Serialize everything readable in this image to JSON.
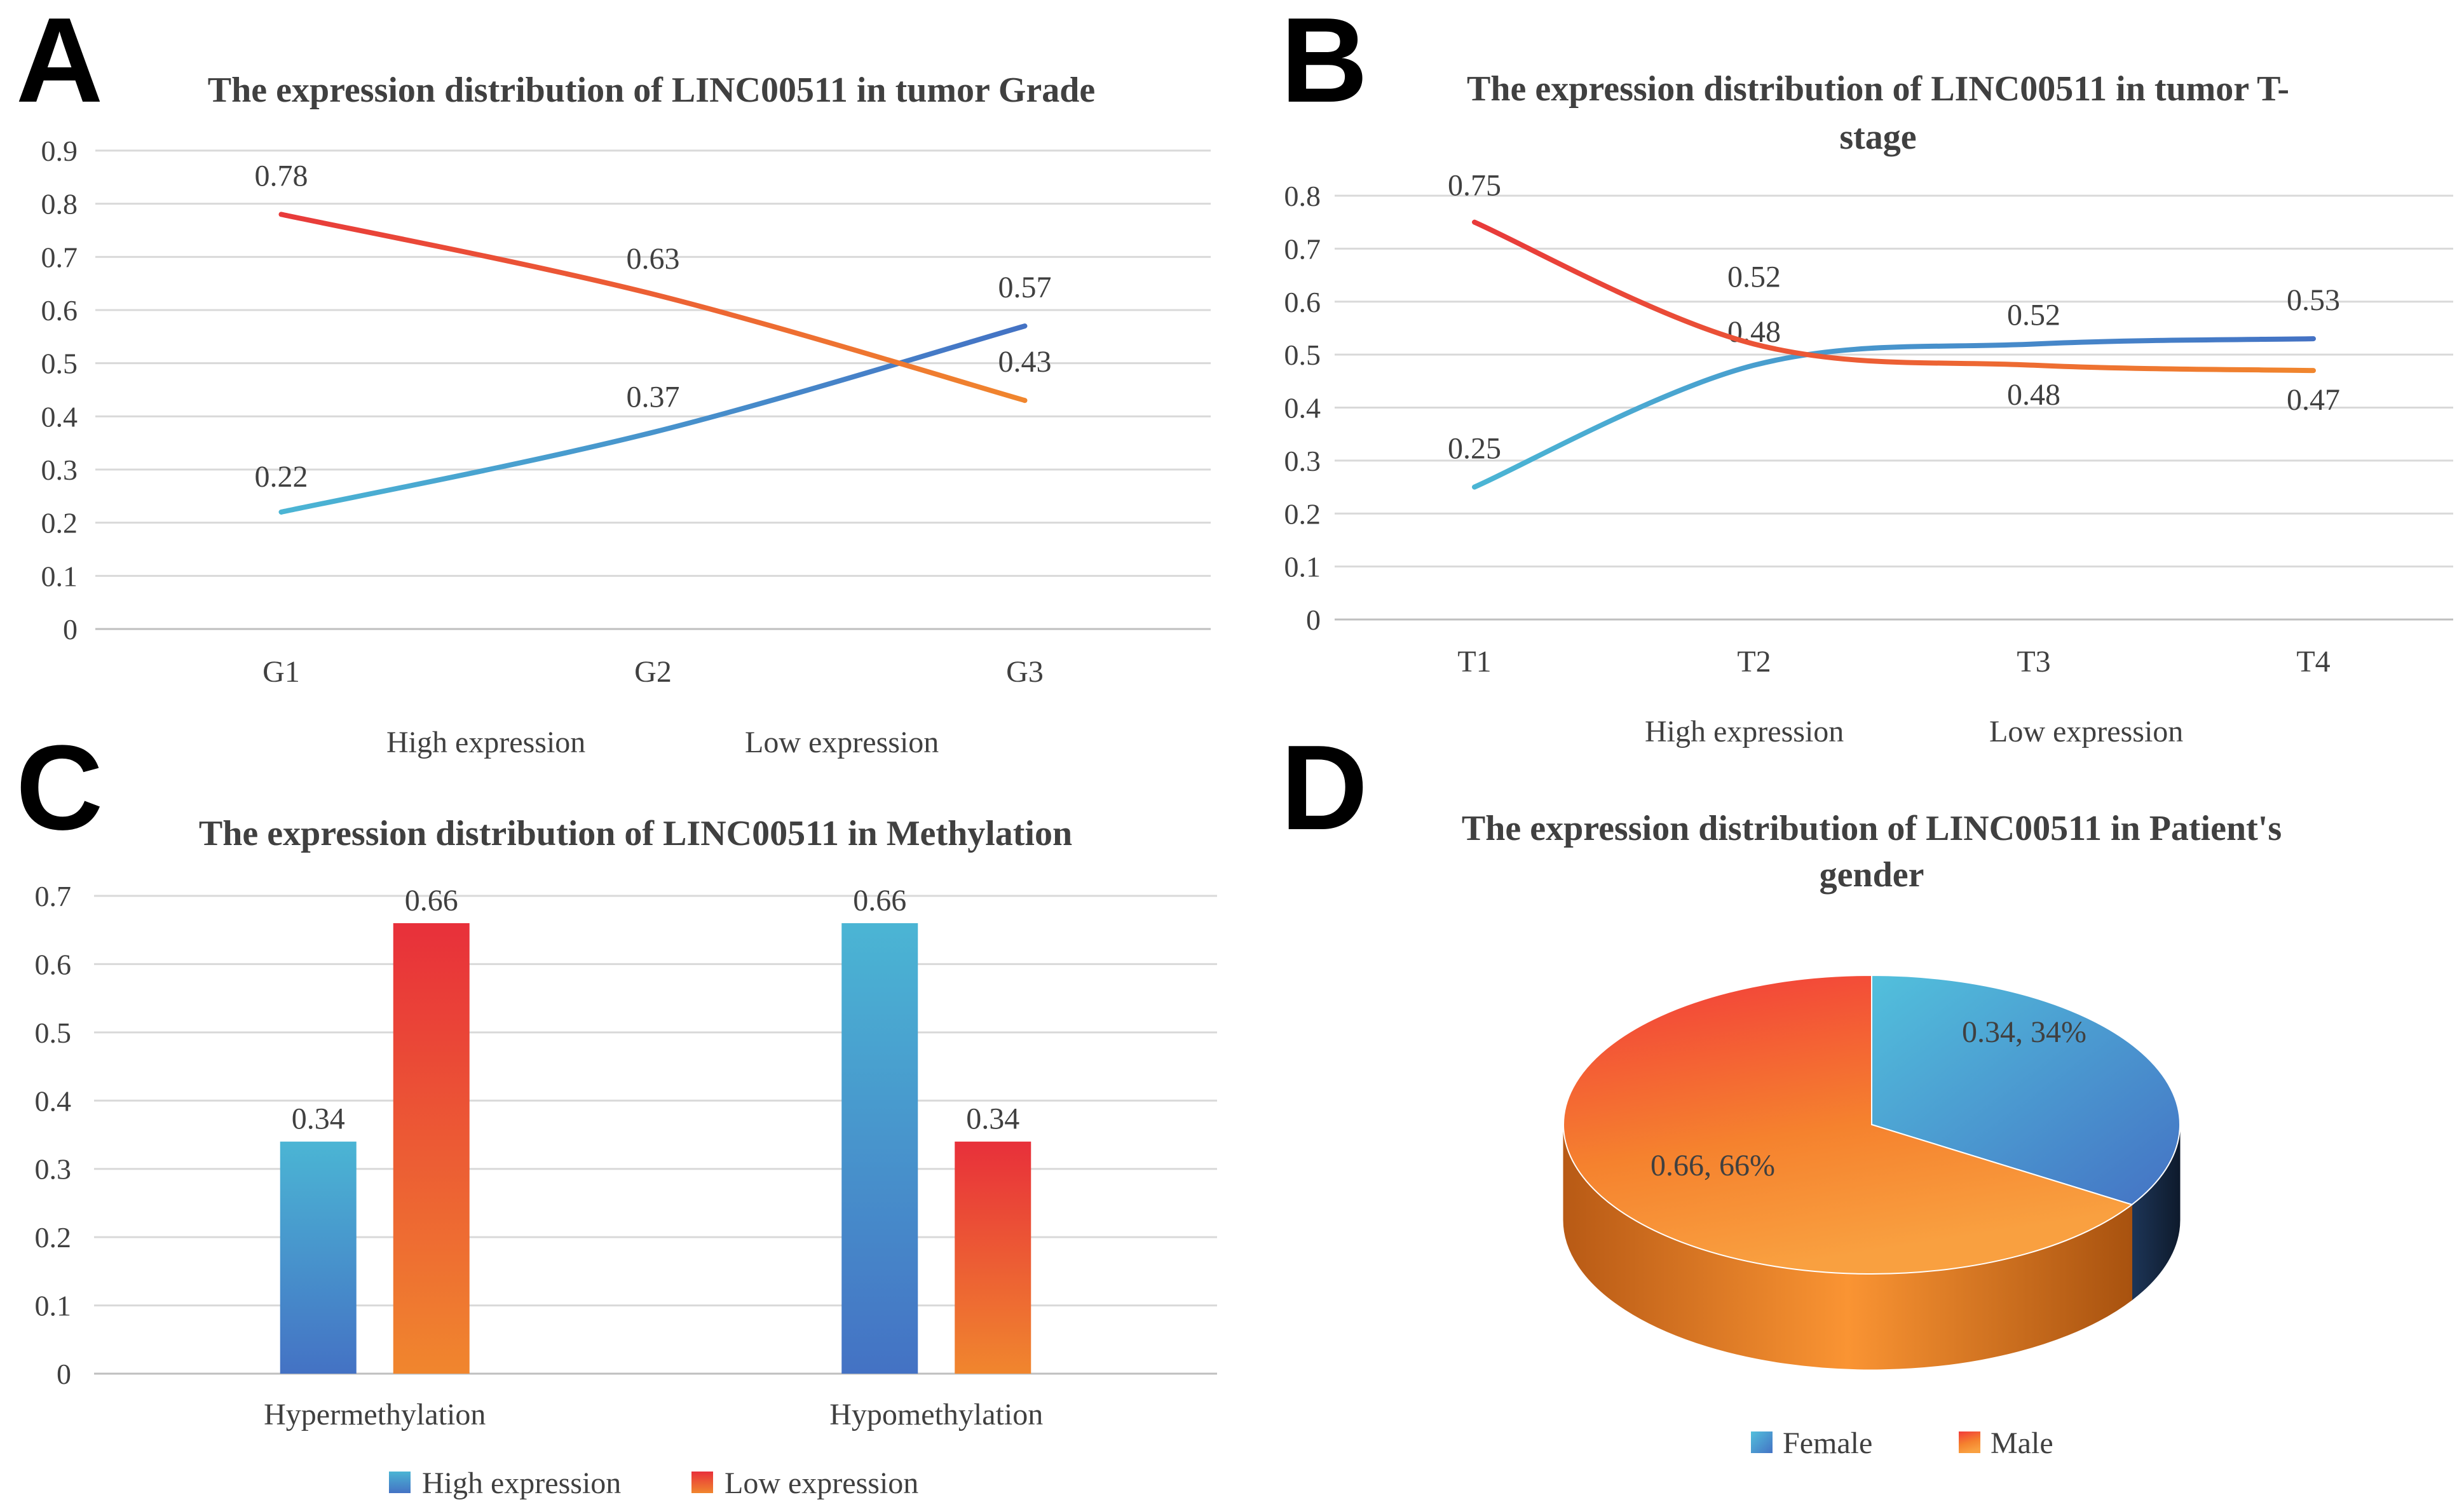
{
  "panels": [
    {
      "letter": "A",
      "chart_index": 0
    },
    {
      "letter": "B",
      "chart_index": 1
    },
    {
      "letter": "C",
      "chart_index": 2
    },
    {
      "letter": "D",
      "chart_index": 3
    }
  ],
  "colors": {
    "high": "#4bacc6",
    "high_dark": "#4472c4",
    "low": "#ed7d31",
    "low_red": "#e83a3a",
    "pie_female": "#4bacc6",
    "pie_male": "#f58a2e"
  },
  "chart_data": [
    {
      "type": "line",
      "title": "The expression distribution of LINC00511 in tumor Grade",
      "categories": [
        "G1",
        "G2",
        "G3"
      ],
      "ylim": [
        0,
        0.9
      ],
      "yticks": [
        "0",
        "0.1",
        "0.2",
        "0.3",
        "0.4",
        "0.5",
        "0.6",
        "0.7",
        "0.8",
        "0.9"
      ],
      "grid": true,
      "legend": "bottom",
      "series": [
        {
          "name": "High expression",
          "values": [
            0.22,
            0.37,
            0.57
          ],
          "labels": [
            "0.22",
            "0.37",
            "0.57"
          ]
        },
        {
          "name": "Low expression",
          "values": [
            0.78,
            0.63,
            0.43
          ],
          "labels": [
            "0.78",
            "0.63",
            "0.43"
          ]
        }
      ]
    },
    {
      "type": "line",
      "title_lines": [
        "The expression distribution of LINC00511 in tumor T-",
        "stage"
      ],
      "categories": [
        "T1",
        "T2",
        "T3",
        "T4"
      ],
      "ylim": [
        0,
        0.8
      ],
      "yticks": [
        "0",
        "0.1",
        "0.2",
        "0.3",
        "0.4",
        "0.5",
        "0.6",
        "0.7",
        "0.8"
      ],
      "grid": true,
      "legend": "bottom",
      "series": [
        {
          "name": "High expression",
          "values": [
            0.25,
            0.48,
            0.52,
            0.53
          ],
          "labels": [
            "0.25",
            "0.48",
            "0.52",
            "0.53"
          ]
        },
        {
          "name": "Low expression",
          "values": [
            0.75,
            0.52,
            0.48,
            0.47
          ],
          "labels": [
            "0.75",
            "0.52",
            "0.48",
            "0.47"
          ]
        }
      ]
    },
    {
      "type": "bar",
      "title": "The expression distribution of LINC00511 in Methylation",
      "categories": [
        "Hypermethylation",
        "Hypomethylation"
      ],
      "ylim": [
        0,
        0.7
      ],
      "yticks": [
        "0",
        "0.1",
        "0.2",
        "0.3",
        "0.4",
        "0.5",
        "0.6",
        "0.7"
      ],
      "grid": true,
      "legend": "bottom",
      "series": [
        {
          "name": "High expression",
          "values": [
            0.34,
            0.66
          ],
          "labels": [
            "0.34",
            "0.66"
          ]
        },
        {
          "name": "Low expression",
          "values": [
            0.66,
            0.34
          ],
          "labels": [
            "0.66",
            "0.34"
          ]
        }
      ]
    },
    {
      "type": "pie",
      "title_lines": [
        "The expression distribution of LINC00511 in Patient's",
        "gender"
      ],
      "legend": "bottom",
      "slices": [
        {
          "name": "Female",
          "value": 0.34,
          "label": "0.34, 34%"
        },
        {
          "name": "Male",
          "value": 0.66,
          "label": "0.66, 66%"
        }
      ]
    }
  ]
}
